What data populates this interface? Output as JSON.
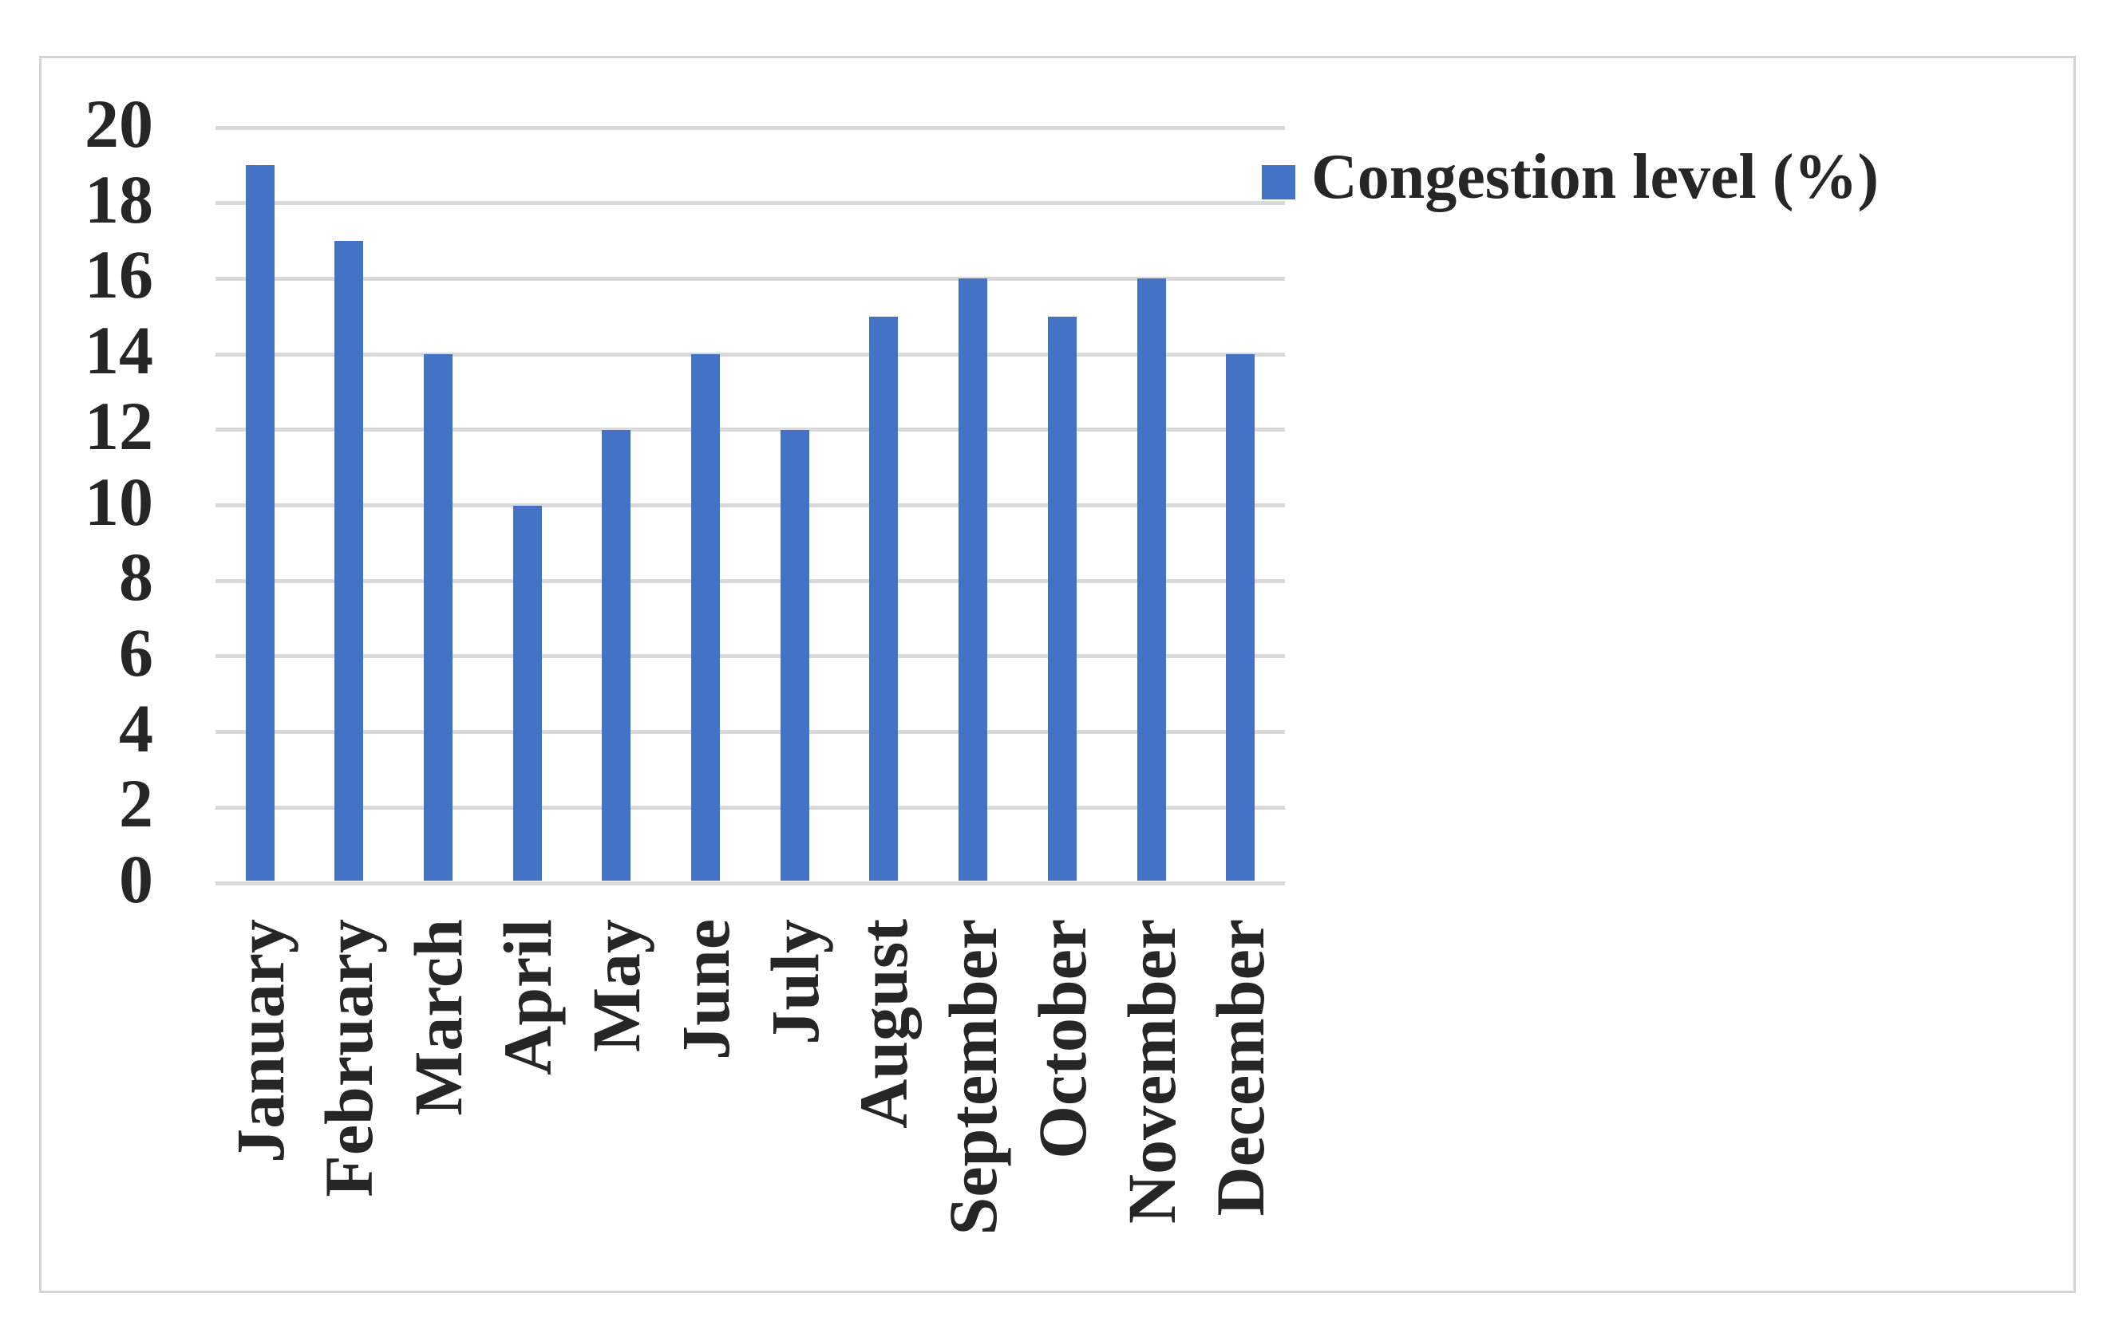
{
  "chart_data": {
    "type": "bar",
    "categories": [
      "January",
      "February",
      "March",
      "April",
      "May",
      "June",
      "July",
      "August",
      "September",
      "October",
      "November",
      "December"
    ],
    "series": [
      {
        "name": "Congestion level (%)",
        "values": [
          19,
          17,
          14,
          10,
          12,
          14,
          12,
          15,
          16,
          15,
          16,
          14
        ]
      }
    ],
    "ylim": [
      0,
      20
    ],
    "ytick_step": 2,
    "ytick_labels": [
      "0",
      "2",
      "4",
      "6",
      "8",
      "10",
      "12",
      "14",
      "16",
      "18",
      "20"
    ],
    "xlabel": "",
    "ylabel": "",
    "grid": "horizontal",
    "legend_position": "top-right",
    "x_label_rotation_deg": -90
  },
  "legend": {
    "label": "Congestion level (%)",
    "swatch_color": "#4472C4"
  },
  "colors": {
    "bar": "#4472C4",
    "gridline": "#d9d9d9",
    "text": "#262626",
    "frame_border": "#d4d4d4",
    "background": "#ffffff"
  }
}
